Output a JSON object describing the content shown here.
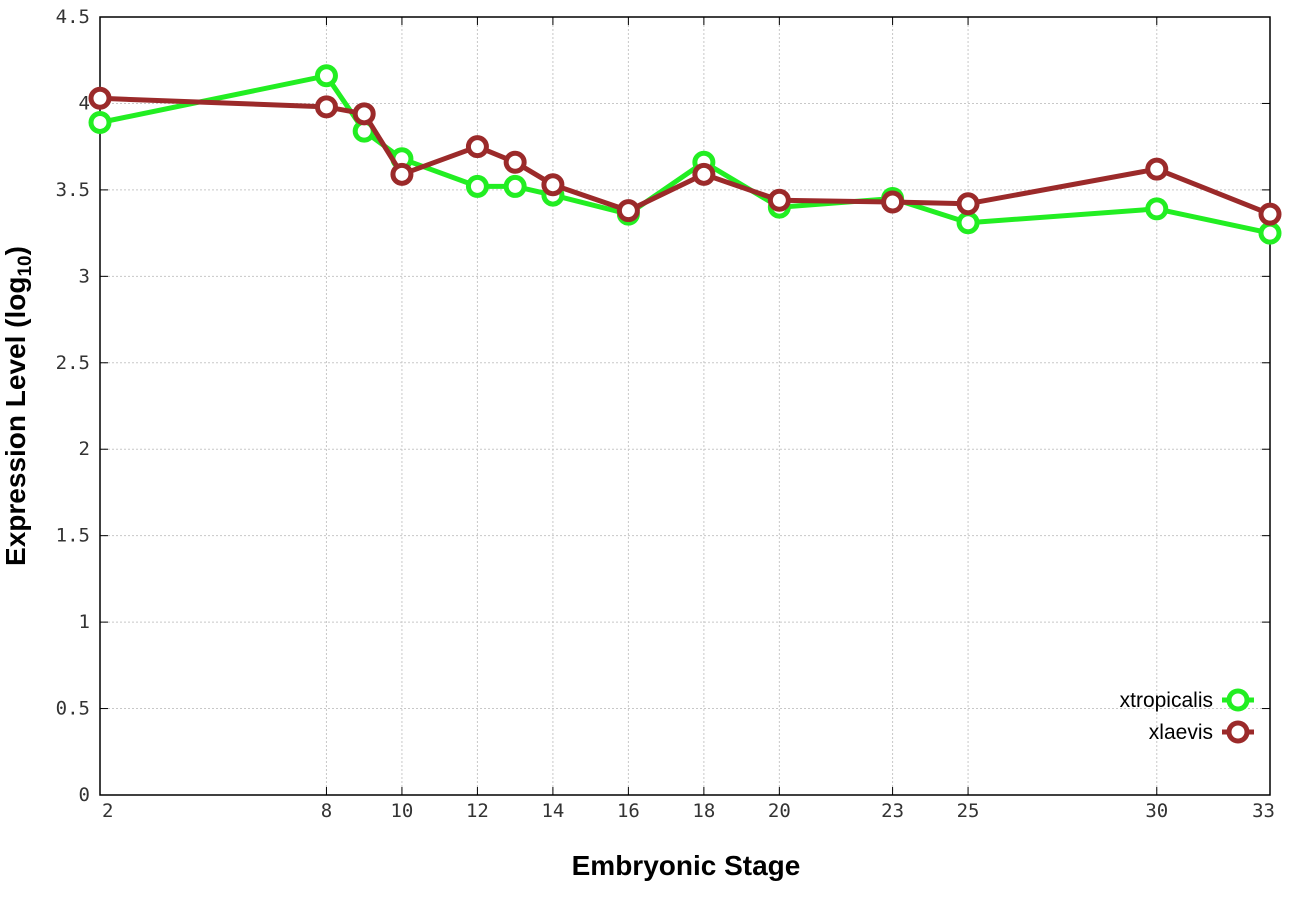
{
  "chart_data": {
    "type": "line",
    "xlabel": "Embryonic Stage",
    "ylabel_main": "Expression Level (log",
    "ylabel_sub": "10",
    "ylabel_close": ")",
    "x_ticks": [
      2,
      8,
      10,
      12,
      14,
      16,
      18,
      20,
      23,
      25,
      30,
      33
    ],
    "y_ticks": [
      0,
      0.5,
      1,
      1.5,
      2,
      2.5,
      3,
      3.5,
      4,
      4.5
    ],
    "y_tick_labels": [
      "0",
      "0.5",
      "1",
      "1.5",
      "2",
      "2.5",
      "3",
      "3.5",
      "4",
      "4.5"
    ],
    "ylim": [
      0,
      4.5
    ],
    "grid": true,
    "legend_position": "bottom-right",
    "series": [
      {
        "name": "xtropicalis",
        "color": "#22ee22",
        "x": [
          2,
          8,
          9,
          10,
          12,
          13,
          14,
          16,
          18,
          20,
          23,
          25,
          30,
          33
        ],
        "y": [
          3.89,
          4.16,
          3.84,
          3.68,
          3.52,
          3.52,
          3.47,
          3.36,
          3.66,
          3.4,
          3.45,
          3.31,
          3.39,
          3.25
        ]
      },
      {
        "name": "xlaevis",
        "color": "#9b2a2a",
        "x": [
          2,
          8,
          9,
          10,
          12,
          13,
          14,
          16,
          18,
          20,
          23,
          25,
          30,
          33
        ],
        "y": [
          4.03,
          3.98,
          3.94,
          3.59,
          3.75,
          3.66,
          3.53,
          3.38,
          3.59,
          3.44,
          3.43,
          3.42,
          3.62,
          3.36
        ]
      }
    ]
  }
}
